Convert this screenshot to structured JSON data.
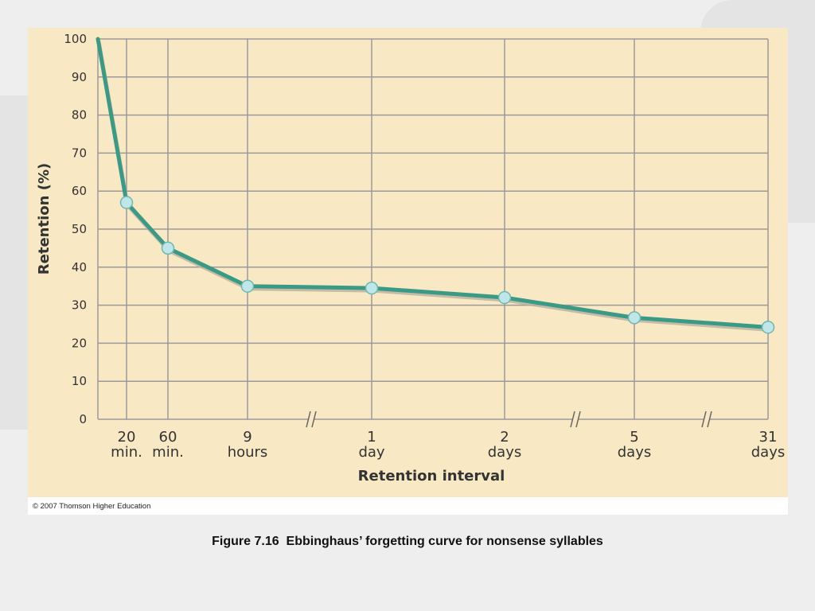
{
  "chart_data": {
    "type": "line",
    "title": "",
    "xlabel": "Retention interval",
    "ylabel": "Retention (%)",
    "ylim": [
      0,
      100
    ],
    "y_ticks": [
      "0",
      "10",
      "20",
      "30",
      "40",
      "50",
      "60",
      "70",
      "80",
      "90",
      "100"
    ],
    "grid": true,
    "categories": [
      {
        "top": "",
        "bottom": ""
      },
      {
        "top": "20",
        "bottom": "min."
      },
      {
        "top": "60",
        "bottom": "min."
      },
      {
        "top": "9",
        "bottom": "hours"
      },
      {
        "top": "1",
        "bottom": "day"
      },
      {
        "top": "2",
        "bottom": "days"
      },
      {
        "top": "5",
        "bottom": "days"
      },
      {
        "top": "31",
        "bottom": "days"
      }
    ],
    "series": [
      {
        "values": [
          100,
          57,
          45,
          35,
          34.5,
          32,
          26.7,
          24.2
        ]
      }
    ],
    "axis_breaks": "between 9 hours and 1 day, between 2 days and 5 days, between 5 days and 31 days",
    "colors": {
      "line": "#3a9a86",
      "marker": "#bfe6e8",
      "background": "#f8e9c4",
      "grid": "#9a9a9a"
    }
  },
  "copyright": "© 2007 Thomson Higher Education",
  "caption": "Figure 7.16  Ebbinghaus’ forgetting curve for nonsense syllables"
}
